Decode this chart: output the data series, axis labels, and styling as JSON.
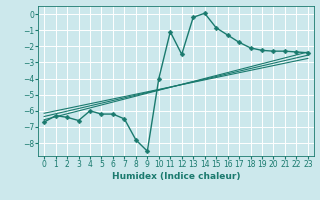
{
  "xlabel": "Humidex (Indice chaleur)",
  "xlim": [
    -0.5,
    23.5
  ],
  "ylim": [
    -8.8,
    0.5
  ],
  "xticks": [
    0,
    1,
    2,
    3,
    4,
    5,
    6,
    7,
    8,
    9,
    10,
    11,
    12,
    13,
    14,
    15,
    16,
    17,
    18,
    19,
    20,
    21,
    22,
    23
  ],
  "yticks": [
    0,
    -1,
    -2,
    -3,
    -4,
    -5,
    -6,
    -7,
    -8
  ],
  "background_color": "#cce8ec",
  "grid_color": "#ffffff",
  "line_color": "#1a7a6e",
  "series_main": {
    "x": [
      0,
      1,
      2,
      3,
      4,
      5,
      6,
      7,
      8,
      9,
      10,
      11,
      12,
      13,
      14,
      15,
      16,
      17,
      18,
      19,
      20,
      21,
      22,
      23
    ],
    "y": [
      -6.7,
      -6.3,
      -6.4,
      -6.6,
      -6.0,
      -6.2,
      -6.2,
      -6.5,
      -7.8,
      -8.5,
      -4.0,
      -1.1,
      -2.5,
      -0.2,
      0.05,
      -0.85,
      -1.3,
      -1.75,
      -2.1,
      -2.25,
      -2.3,
      -2.3,
      -2.35,
      -2.4
    ],
    "color": "#1a7a6e",
    "linewidth": 1.0,
    "markersize": 2.5
  },
  "series_lines": [
    {
      "x0": 0.0,
      "y0": -6.55,
      "x1": 23.0,
      "y1": -2.35
    },
    {
      "x0": 0.0,
      "y0": -6.35,
      "x1": 23.0,
      "y1": -2.55
    },
    {
      "x0": 0.0,
      "y0": -6.15,
      "x1": 23.0,
      "y1": -2.75
    }
  ]
}
